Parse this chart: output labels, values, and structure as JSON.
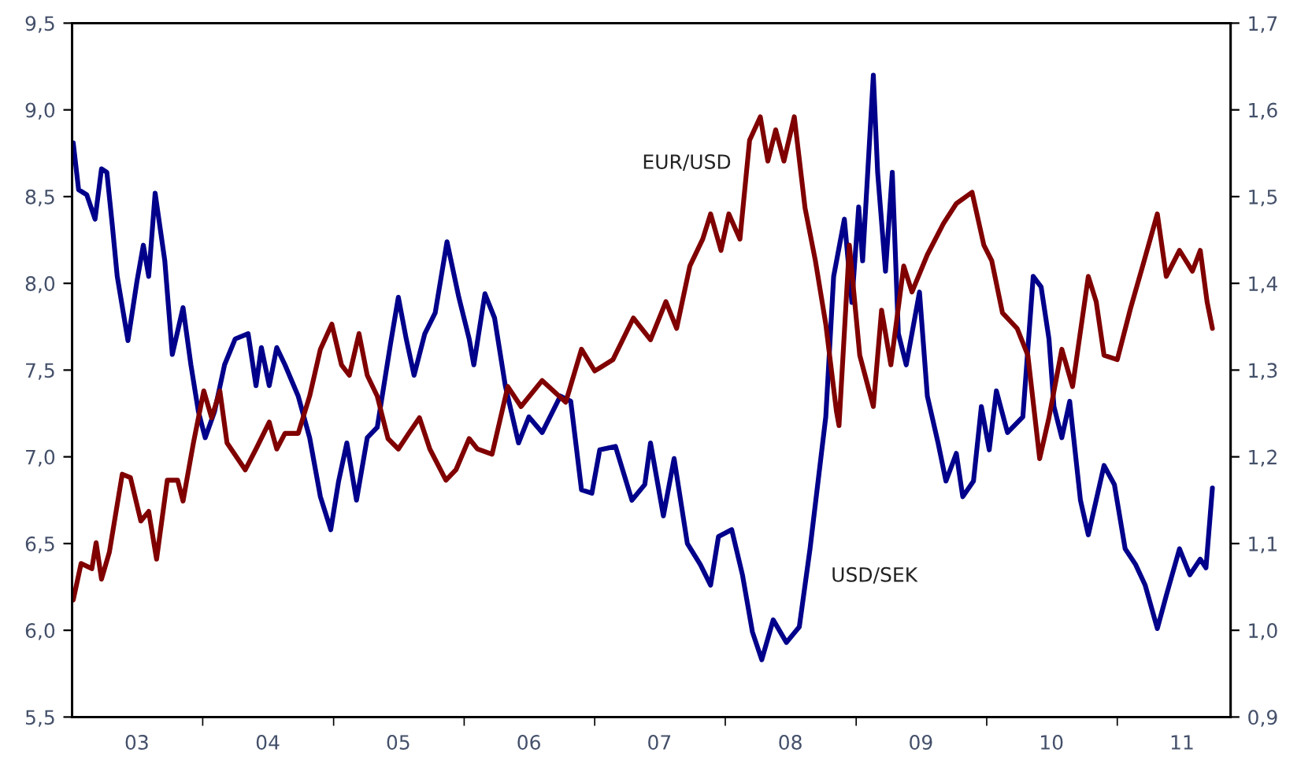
{
  "chart_data": {
    "type": "line",
    "xlim": [
      "2003-01-01",
      "2011-11-14"
    ],
    "xticks": [
      {
        "value": "2003-07-01",
        "label": "03"
      },
      {
        "value": "2004-01-01",
        "label": null
      },
      {
        "value": "2004-07-01",
        "label": "04"
      },
      {
        "value": "2005-01-01",
        "label": null
      },
      {
        "value": "2005-07-01",
        "label": "05"
      },
      {
        "value": "2006-01-01",
        "label": null
      },
      {
        "value": "2006-07-01",
        "label": "06"
      },
      {
        "value": "2007-01-01",
        "label": null
      },
      {
        "value": "2007-07-01",
        "label": "07"
      },
      {
        "value": "2008-01-01",
        "label": null
      },
      {
        "value": "2008-07-01",
        "label": "08"
      },
      {
        "value": "2009-01-01",
        "label": null
      },
      {
        "value": "2009-07-01",
        "label": "09"
      },
      {
        "value": "2010-01-01",
        "label": null
      },
      {
        "value": "2010-07-01",
        "label": "10"
      },
      {
        "value": "2011-01-01",
        "label": null
      },
      {
        "value": "2011-07-01",
        "label": "11"
      }
    ],
    "ylim": [
      5.5,
      9.5
    ],
    "yticks": [
      {
        "value": 5.5,
        "label": "5,5"
      },
      {
        "value": 6.0,
        "label": "6,0"
      },
      {
        "value": 6.5,
        "label": "6,5"
      },
      {
        "value": 7.0,
        "label": "7,0"
      },
      {
        "value": 7.5,
        "label": "7,5"
      },
      {
        "value": 8.0,
        "label": "8,0"
      },
      {
        "value": 8.5,
        "label": "8,5"
      },
      {
        "value": 9.0,
        "label": "9,0"
      },
      {
        "value": 9.5,
        "label": "9,5"
      }
    ],
    "y2lim": [
      0.9,
      1.7
    ],
    "y2ticks": [
      {
        "value": 0.9,
        "label": "0,9"
      },
      {
        "value": 1.0,
        "label": "1,0"
      },
      {
        "value": 1.1,
        "label": "1,1"
      },
      {
        "value": 1.2,
        "label": "1,2"
      },
      {
        "value": 1.3,
        "label": "1,3"
      },
      {
        "value": 1.4,
        "label": "1,4"
      },
      {
        "value": 1.5,
        "label": "1,5"
      },
      {
        "value": 1.6,
        "label": "1,6"
      },
      {
        "value": 1.7,
        "label": "1,7"
      }
    ],
    "grid": false,
    "legend": false,
    "marker": "none",
    "line_style": "solid",
    "series": [
      {
        "name": "USD/SEK",
        "color": "#00008b",
        "x": [
          "2003-01-04",
          "2003-01-19",
          "2003-02-11",
          "2003-03-06",
          "2003-03-24",
          "2003-04-08",
          "2003-04-23",
          "2003-05-07",
          "2003-06-06",
          "2003-07-01",
          "2003-07-19",
          "2003-08-03",
          "2003-08-21",
          "2003-09-17",
          "2003-10-08",
          "2003-11-07",
          "2003-11-29",
          "2003-12-20",
          "2004-01-08",
          "2004-02-03",
          "2004-03-02",
          "2004-04-01",
          "2004-05-07",
          "2004-05-29",
          "2004-06-13",
          "2004-07-05",
          "2004-07-26",
          "2004-08-18",
          "2004-09-24",
          "2004-10-26",
          "2004-11-25",
          "2004-12-24",
          "2005-01-15",
          "2005-02-07",
          "2005-03-06",
          "2005-04-05",
          "2005-05-03",
          "2005-06-09",
          "2005-07-01",
          "2005-07-23",
          "2005-08-14",
          "2005-09-13",
          "2005-10-12",
          "2005-11-14",
          "2005-12-17",
          "2006-01-15",
          "2006-01-28",
          "2006-02-28",
          "2006-03-27",
          "2006-04-26",
          "2006-06-02",
          "2006-07-01",
          "2006-08-07",
          "2006-09-27",
          "2006-10-26",
          "2006-11-25",
          "2006-12-24",
          "2007-01-15",
          "2007-02-28",
          "2007-04-15",
          "2007-05-21",
          "2007-06-06",
          "2007-07-12",
          "2007-08-11",
          "2007-09-17",
          "2007-10-23",
          "2007-11-21",
          "2007-12-13",
          "2008-01-19",
          "2008-02-18",
          "2008-03-17",
          "2008-04-12",
          "2008-05-14",
          "2008-06-20",
          "2008-07-26",
          "2008-08-25",
          "2008-10-08",
          "2008-10-30",
          "2008-11-29",
          "2008-12-20",
          "2009-01-08",
          "2009-01-19",
          "2009-02-18",
          "2009-03-02",
          "2009-03-24",
          "2009-04-12",
          "2009-04-29",
          "2009-05-21",
          "2009-06-27",
          "2009-07-19",
          "2009-08-18",
          "2009-09-09",
          "2009-10-08",
          "2009-10-26",
          "2009-11-25",
          "2009-12-17",
          "2010-01-08",
          "2010-01-28",
          "2010-02-28",
          "2010-04-12",
          "2010-05-11",
          "2010-06-02",
          "2010-06-24",
          "2010-07-08",
          "2010-07-30",
          "2010-08-21",
          "2010-09-20",
          "2010-10-12",
          "2010-11-03",
          "2010-11-25",
          "2010-12-24",
          "2011-01-23",
          "2011-02-21",
          "2011-03-20",
          "2011-04-23",
          "2011-05-18",
          "2011-06-24",
          "2011-07-23",
          "2011-08-21",
          "2011-09-06",
          "2011-09-24"
        ],
        "values": [
          8.81,
          8.54,
          8.51,
          8.37,
          8.66,
          8.64,
          8.34,
          8.04,
          7.67,
          8.01,
          8.22,
          8.04,
          8.52,
          8.13,
          7.59,
          7.86,
          7.53,
          7.26,
          7.11,
          7.26,
          7.53,
          7.68,
          7.71,
          7.41,
          7.63,
          7.41,
          7.63,
          7.53,
          7.35,
          7.11,
          6.77,
          6.58,
          6.86,
          7.08,
          6.75,
          7.11,
          7.17,
          7.65,
          7.92,
          7.68,
          7.47,
          7.71,
          7.83,
          8.24,
          7.92,
          7.68,
          7.53,
          7.94,
          7.8,
          7.41,
          7.08,
          7.23,
          7.14,
          7.35,
          7.32,
          6.81,
          6.79,
          7.04,
          7.06,
          6.75,
          6.84,
          7.08,
          6.66,
          6.99,
          6.5,
          6.38,
          6.26,
          6.54,
          6.58,
          6.32,
          5.99,
          5.83,
          6.06,
          5.93,
          6.02,
          6.47,
          7.23,
          8.04,
          8.37,
          7.89,
          8.44,
          8.13,
          9.2,
          8.64,
          8.07,
          8.64,
          7.71,
          7.53,
          7.95,
          7.35,
          7.08,
          6.86,
          7.02,
          6.77,
          6.86,
          7.29,
          7.04,
          7.38,
          7.14,
          7.23,
          8.04,
          7.98,
          7.68,
          7.29,
          7.11,
          7.32,
          6.75,
          6.55,
          6.75,
          6.95,
          6.84,
          6.47,
          6.38,
          6.26,
          6.01,
          6.2,
          6.47,
          6.32,
          6.41,
          6.36,
          6.82
        ]
      },
      {
        "name": "EUR/USD",
        "color": "#800000",
        "axis": "y2",
        "x": [
          "2003-01-04",
          "2003-01-26",
          "2003-02-25",
          "2003-03-09",
          "2003-03-24",
          "2003-04-15",
          "2003-05-21",
          "2003-06-13",
          "2003-07-12",
          "2003-08-03",
          "2003-08-25",
          "2003-09-24",
          "2003-10-23",
          "2003-11-07",
          "2003-12-06",
          "2004-01-04",
          "2004-01-26",
          "2004-02-18",
          "2004-03-09",
          "2004-04-29",
          "2004-05-29",
          "2004-07-05",
          "2004-07-26",
          "2004-08-18",
          "2004-09-24",
          "2004-10-26",
          "2004-11-25",
          "2004-12-27",
          "2005-01-23",
          "2005-02-14",
          "2005-03-13",
          "2005-04-05",
          "2005-05-03",
          "2005-06-02",
          "2005-07-01",
          "2005-07-30",
          "2005-08-29",
          "2005-09-27",
          "2005-11-11",
          "2005-12-09",
          "2006-01-15",
          "2006-02-07",
          "2006-03-20",
          "2006-05-03",
          "2006-06-09",
          "2006-08-07",
          "2006-10-12",
          "2006-11-25",
          "2007-01-01",
          "2007-02-21",
          "2007-04-19",
          "2007-06-06",
          "2007-07-19",
          "2007-08-18",
          "2007-09-24",
          "2007-10-30",
          "2007-11-21",
          "2007-12-20",
          "2008-01-11",
          "2008-02-11",
          "2008-03-09",
          "2008-04-08",
          "2008-04-29",
          "2008-05-21",
          "2008-06-13",
          "2008-07-12",
          "2008-08-11",
          "2008-09-09",
          "2008-10-08",
          "2008-11-07",
          "2008-11-14",
          "2008-12-13",
          "2009-01-11",
          "2009-02-18",
          "2009-03-13",
          "2009-04-08",
          "2009-05-14",
          "2009-06-06",
          "2009-07-19",
          "2009-09-02",
          "2009-10-08",
          "2009-11-21",
          "2009-12-24",
          "2010-01-15",
          "2010-02-14",
          "2010-03-27",
          "2010-04-26",
          "2010-05-29",
          "2010-06-24",
          "2010-07-30",
          "2010-08-29",
          "2010-10-12",
          "2010-11-03",
          "2010-11-25",
          "2011-01-01",
          "2011-02-07",
          "2011-03-13",
          "2011-04-23",
          "2011-05-18",
          "2011-06-24",
          "2011-07-30",
          "2011-08-21",
          "2011-09-09",
          "2011-09-24"
        ],
        "values": [
          1.035,
          1.077,
          1.071,
          1.101,
          1.059,
          1.09,
          1.18,
          1.176,
          1.126,
          1.137,
          1.082,
          1.173,
          1.173,
          1.149,
          1.216,
          1.276,
          1.245,
          1.276,
          1.216,
          1.185,
          1.209,
          1.24,
          1.209,
          1.227,
          1.227,
          1.27,
          1.324,
          1.353,
          1.306,
          1.294,
          1.342,
          1.294,
          1.27,
          1.221,
          1.209,
          1.227,
          1.245,
          1.209,
          1.173,
          1.185,
          1.221,
          1.209,
          1.203,
          1.281,
          1.258,
          1.288,
          1.263,
          1.324,
          1.299,
          1.312,
          1.36,
          1.335,
          1.379,
          1.348,
          1.42,
          1.451,
          1.48,
          1.438,
          1.48,
          1.451,
          1.565,
          1.592,
          1.541,
          1.577,
          1.541,
          1.592,
          1.487,
          1.426,
          1.353,
          1.252,
          1.236,
          1.444,
          1.317,
          1.258,
          1.369,
          1.306,
          1.42,
          1.39,
          1.433,
          1.469,
          1.492,
          1.505,
          1.444,
          1.426,
          1.366,
          1.348,
          1.317,
          1.198,
          1.245,
          1.324,
          1.281,
          1.408,
          1.379,
          1.317,
          1.312,
          1.371,
          1.42,
          1.48,
          1.408,
          1.438,
          1.414,
          1.438,
          1.379,
          1.348
        ]
      }
    ]
  }
}
